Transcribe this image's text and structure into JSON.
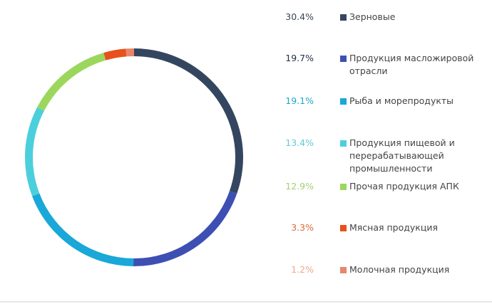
{
  "chart_data": {
    "type": "pie",
    "donut": true,
    "start": "top",
    "direction": "clockwise",
    "legend_position": "right",
    "series": [
      {
        "name": "Зерновые",
        "value": 30.4,
        "label": "30.4%",
        "color": "#34465f",
        "label_color": "#3a4656"
      },
      {
        "name": "Продукция масложировой отрасли",
        "value": 19.7,
        "label": "19.7%",
        "color": "#3e4fb3",
        "label_color": "#1f2d4a"
      },
      {
        "name": "Рыба и морепродукты",
        "value": 19.1,
        "label": "19.1%",
        "color": "#19a8d8",
        "label_color": "#1ea9c6"
      },
      {
        "name": "Продукция пищевой и перерабатывающей промышленности",
        "value": 13.4,
        "label": "13.4%",
        "color": "#4ccfdc",
        "label_color": "#62c9d4"
      },
      {
        "name": "Прочая продукция АПК",
        "value": 12.9,
        "label": "12.9%",
        "color": "#9bd75d",
        "label_color": "#a3cf78"
      },
      {
        "name": "Мясная продукция",
        "value": 3.3,
        "label": "3.3%",
        "color": "#e8501c",
        "label_color": "#dc6a30"
      },
      {
        "name": "Молочная продукция",
        "value": 1.2,
        "label": "1.2%",
        "color": "#e8866c",
        "label_color": "#eea88c"
      }
    ]
  }
}
